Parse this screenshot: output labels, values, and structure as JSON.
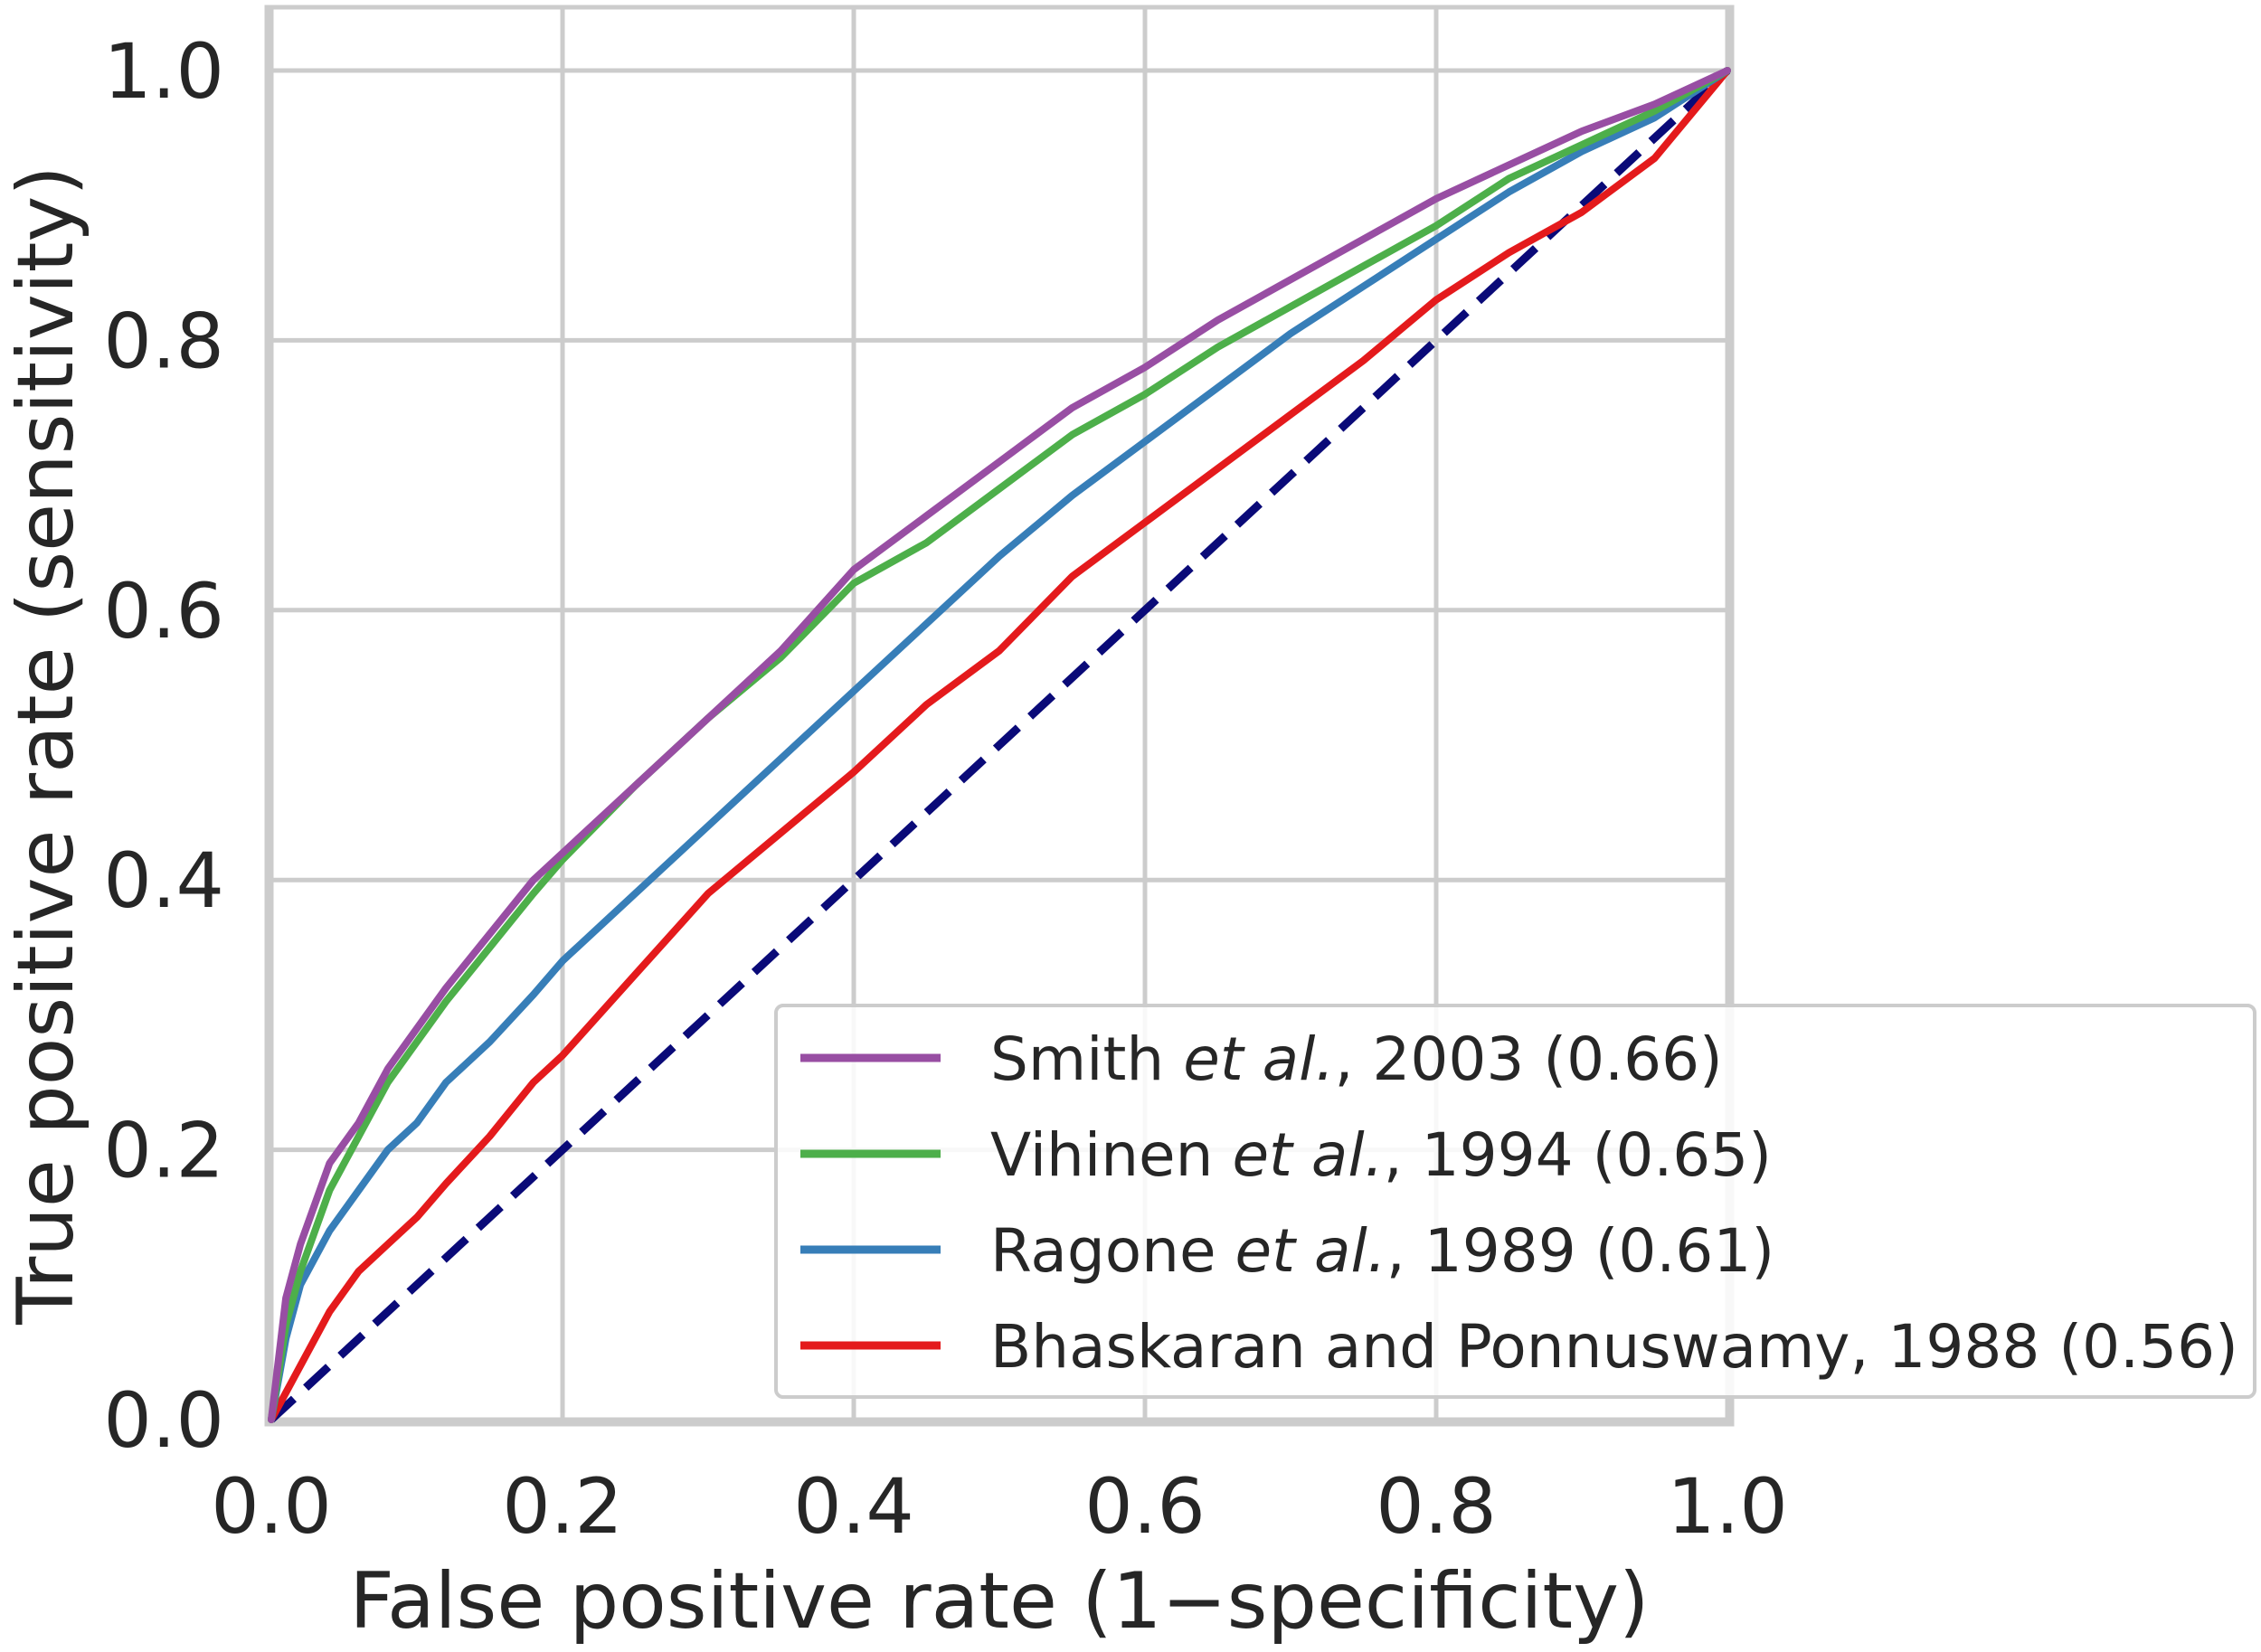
{
  "chart_data": {
    "type": "line",
    "xlabel": "False positive rate (1−specificity)",
    "ylabel": "True positive rate (sensitivity)",
    "xlim": [
      0,
      1
    ],
    "ylim": [
      0,
      1
    ],
    "grid": true,
    "legend_position": "bottom-right",
    "x_ticks": [
      "0.0",
      "0.2",
      "0.4",
      "0.6",
      "0.8",
      "1.0"
    ],
    "y_ticks": [
      "0.0",
      "0.2",
      "0.4",
      "0.6",
      "0.8",
      "1.0"
    ],
    "series": [
      {
        "name": "Smith et al., 2003 (0.66)",
        "legend_parts": [
          "Smith ",
          "et al.",
          ", 2003 (0.66)"
        ],
        "color": "#984ea3",
        "x": [
          0,
          0.01,
          0.02,
          0.04,
          0.06,
          0.08,
          0.1,
          0.12,
          0.15,
          0.18,
          0.2,
          0.25,
          0.3,
          0.35,
          0.4,
          0.45,
          0.5,
          0.55,
          0.6,
          0.65,
          0.7,
          0.75,
          0.8,
          0.85,
          0.9,
          0.95,
          1.0
        ],
        "y": [
          0,
          0.09,
          0.13,
          0.19,
          0.22,
          0.26,
          0.29,
          0.32,
          0.36,
          0.4,
          0.42,
          0.47,
          0.52,
          0.57,
          0.63,
          0.67,
          0.71,
          0.75,
          0.78,
          0.815,
          0.845,
          0.875,
          0.905,
          0.93,
          0.955,
          0.975,
          1.0
        ]
      },
      {
        "name": "Vihinen et al., 1994 (0.65)",
        "legend_parts": [
          "Vihinen ",
          "et al.",
          ", 1994 (0.65)"
        ],
        "color": "#4daf4a",
        "x": [
          0,
          0.01,
          0.02,
          0.04,
          0.06,
          0.08,
          0.1,
          0.12,
          0.15,
          0.18,
          0.2,
          0.25,
          0.3,
          0.35,
          0.4,
          0.45,
          0.5,
          0.55,
          0.6,
          0.65,
          0.7,
          0.75,
          0.8,
          0.85,
          0.9,
          0.95,
          1.0
        ],
        "y": [
          0,
          0.07,
          0.11,
          0.17,
          0.21,
          0.25,
          0.28,
          0.31,
          0.35,
          0.39,
          0.415,
          0.47,
          0.52,
          0.565,
          0.62,
          0.65,
          0.69,
          0.73,
          0.76,
          0.795,
          0.825,
          0.855,
          0.885,
          0.92,
          0.945,
          0.97,
          1.0
        ]
      },
      {
        "name": "Ragone et al., 1989 (0.61)",
        "legend_parts": [
          "Ragone ",
          "et al.",
          ", 1989 (0.61)"
        ],
        "color": "#377eb8",
        "x": [
          0,
          0.01,
          0.02,
          0.04,
          0.06,
          0.08,
          0.1,
          0.12,
          0.15,
          0.18,
          0.2,
          0.25,
          0.3,
          0.35,
          0.4,
          0.45,
          0.5,
          0.55,
          0.6,
          0.65,
          0.7,
          0.75,
          0.8,
          0.85,
          0.9,
          0.95,
          1.0
        ],
        "y": [
          0,
          0.06,
          0.1,
          0.14,
          0.17,
          0.2,
          0.22,
          0.25,
          0.28,
          0.315,
          0.34,
          0.39,
          0.44,
          0.49,
          0.54,
          0.59,
          0.64,
          0.685,
          0.725,
          0.765,
          0.805,
          0.84,
          0.875,
          0.91,
          0.94,
          0.965,
          1.0
        ]
      },
      {
        "name": "Bhaskaran and Ponnuswamy, 1988 (0.56)",
        "legend_parts": [
          "Bhaskaran and Ponnuswamy, 1988 (0.56)",
          "",
          ""
        ],
        "color": "#e41a1c",
        "x": [
          0,
          0.01,
          0.02,
          0.04,
          0.06,
          0.08,
          0.1,
          0.12,
          0.15,
          0.18,
          0.2,
          0.25,
          0.3,
          0.35,
          0.4,
          0.45,
          0.5,
          0.55,
          0.6,
          0.65,
          0.7,
          0.75,
          0.8,
          0.85,
          0.9,
          0.95,
          1.0
        ],
        "y": [
          0,
          0.02,
          0.04,
          0.08,
          0.11,
          0.13,
          0.15,
          0.175,
          0.21,
          0.25,
          0.27,
          0.33,
          0.39,
          0.435,
          0.48,
          0.53,
          0.57,
          0.625,
          0.665,
          0.705,
          0.745,
          0.785,
          0.83,
          0.865,
          0.895,
          0.935,
          1.0
        ]
      }
    ],
    "reference_line": {
      "x": [
        0,
        1
      ],
      "y": [
        0,
        1
      ],
      "color": "#0a0a78",
      "style": "dashed"
    }
  }
}
